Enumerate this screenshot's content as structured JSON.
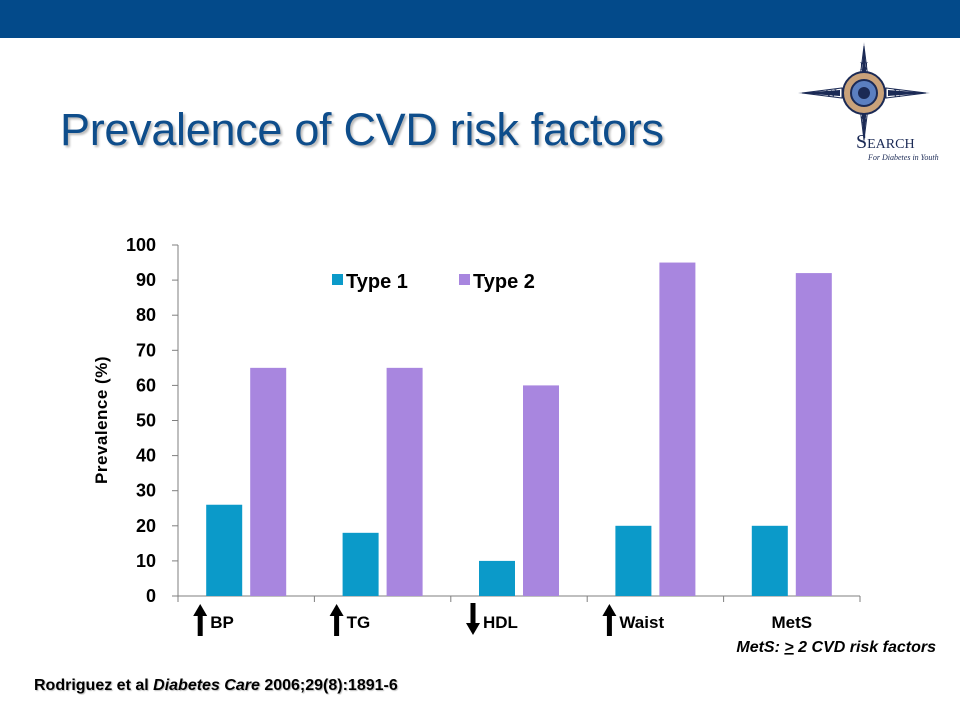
{
  "slide": {
    "title": "Prevalence of CVD risk factors",
    "citation": {
      "authors": "Rodriguez et al",
      "journal": "Diabetes Care",
      "ref": "2006;29(8):1891-6"
    },
    "note": {
      "prefix": "MetS: ",
      "symbol": ">",
      "suffix": " 2 CVD risk factors"
    }
  },
  "logo": {
    "letters": {
      "n": "N",
      "s": "S",
      "e": "E",
      "w": "W"
    },
    "brand_initial": "S",
    "brand_rest": "EARCH",
    "tagline": "For Diabetes in Youth"
  },
  "colors": {
    "band": "#034a8a",
    "title": "#0e4d8b",
    "type1": "#0b9ac9",
    "type2": "#a886df"
  },
  "chart_data": {
    "type": "bar",
    "title": "",
    "xlabel": "",
    "ylabel": "Prevalence (%)",
    "ylim": [
      0,
      100
    ],
    "yticks": [
      0,
      10,
      20,
      30,
      40,
      50,
      60,
      70,
      80,
      90,
      100
    ],
    "grid": false,
    "legend": "top",
    "categories": [
      "BP",
      "TG",
      "HDL",
      "Waist",
      "MetS"
    ],
    "category_arrows": [
      "up",
      "up",
      "down",
      "up",
      "none"
    ],
    "series": [
      {
        "name": "Type 1",
        "values": [
          26,
          18,
          10,
          20,
          20
        ],
        "color": "#0b9ac9"
      },
      {
        "name": "Type 2",
        "values": [
          65,
          65,
          60,
          95,
          92
        ],
        "color": "#a886df"
      }
    ]
  }
}
